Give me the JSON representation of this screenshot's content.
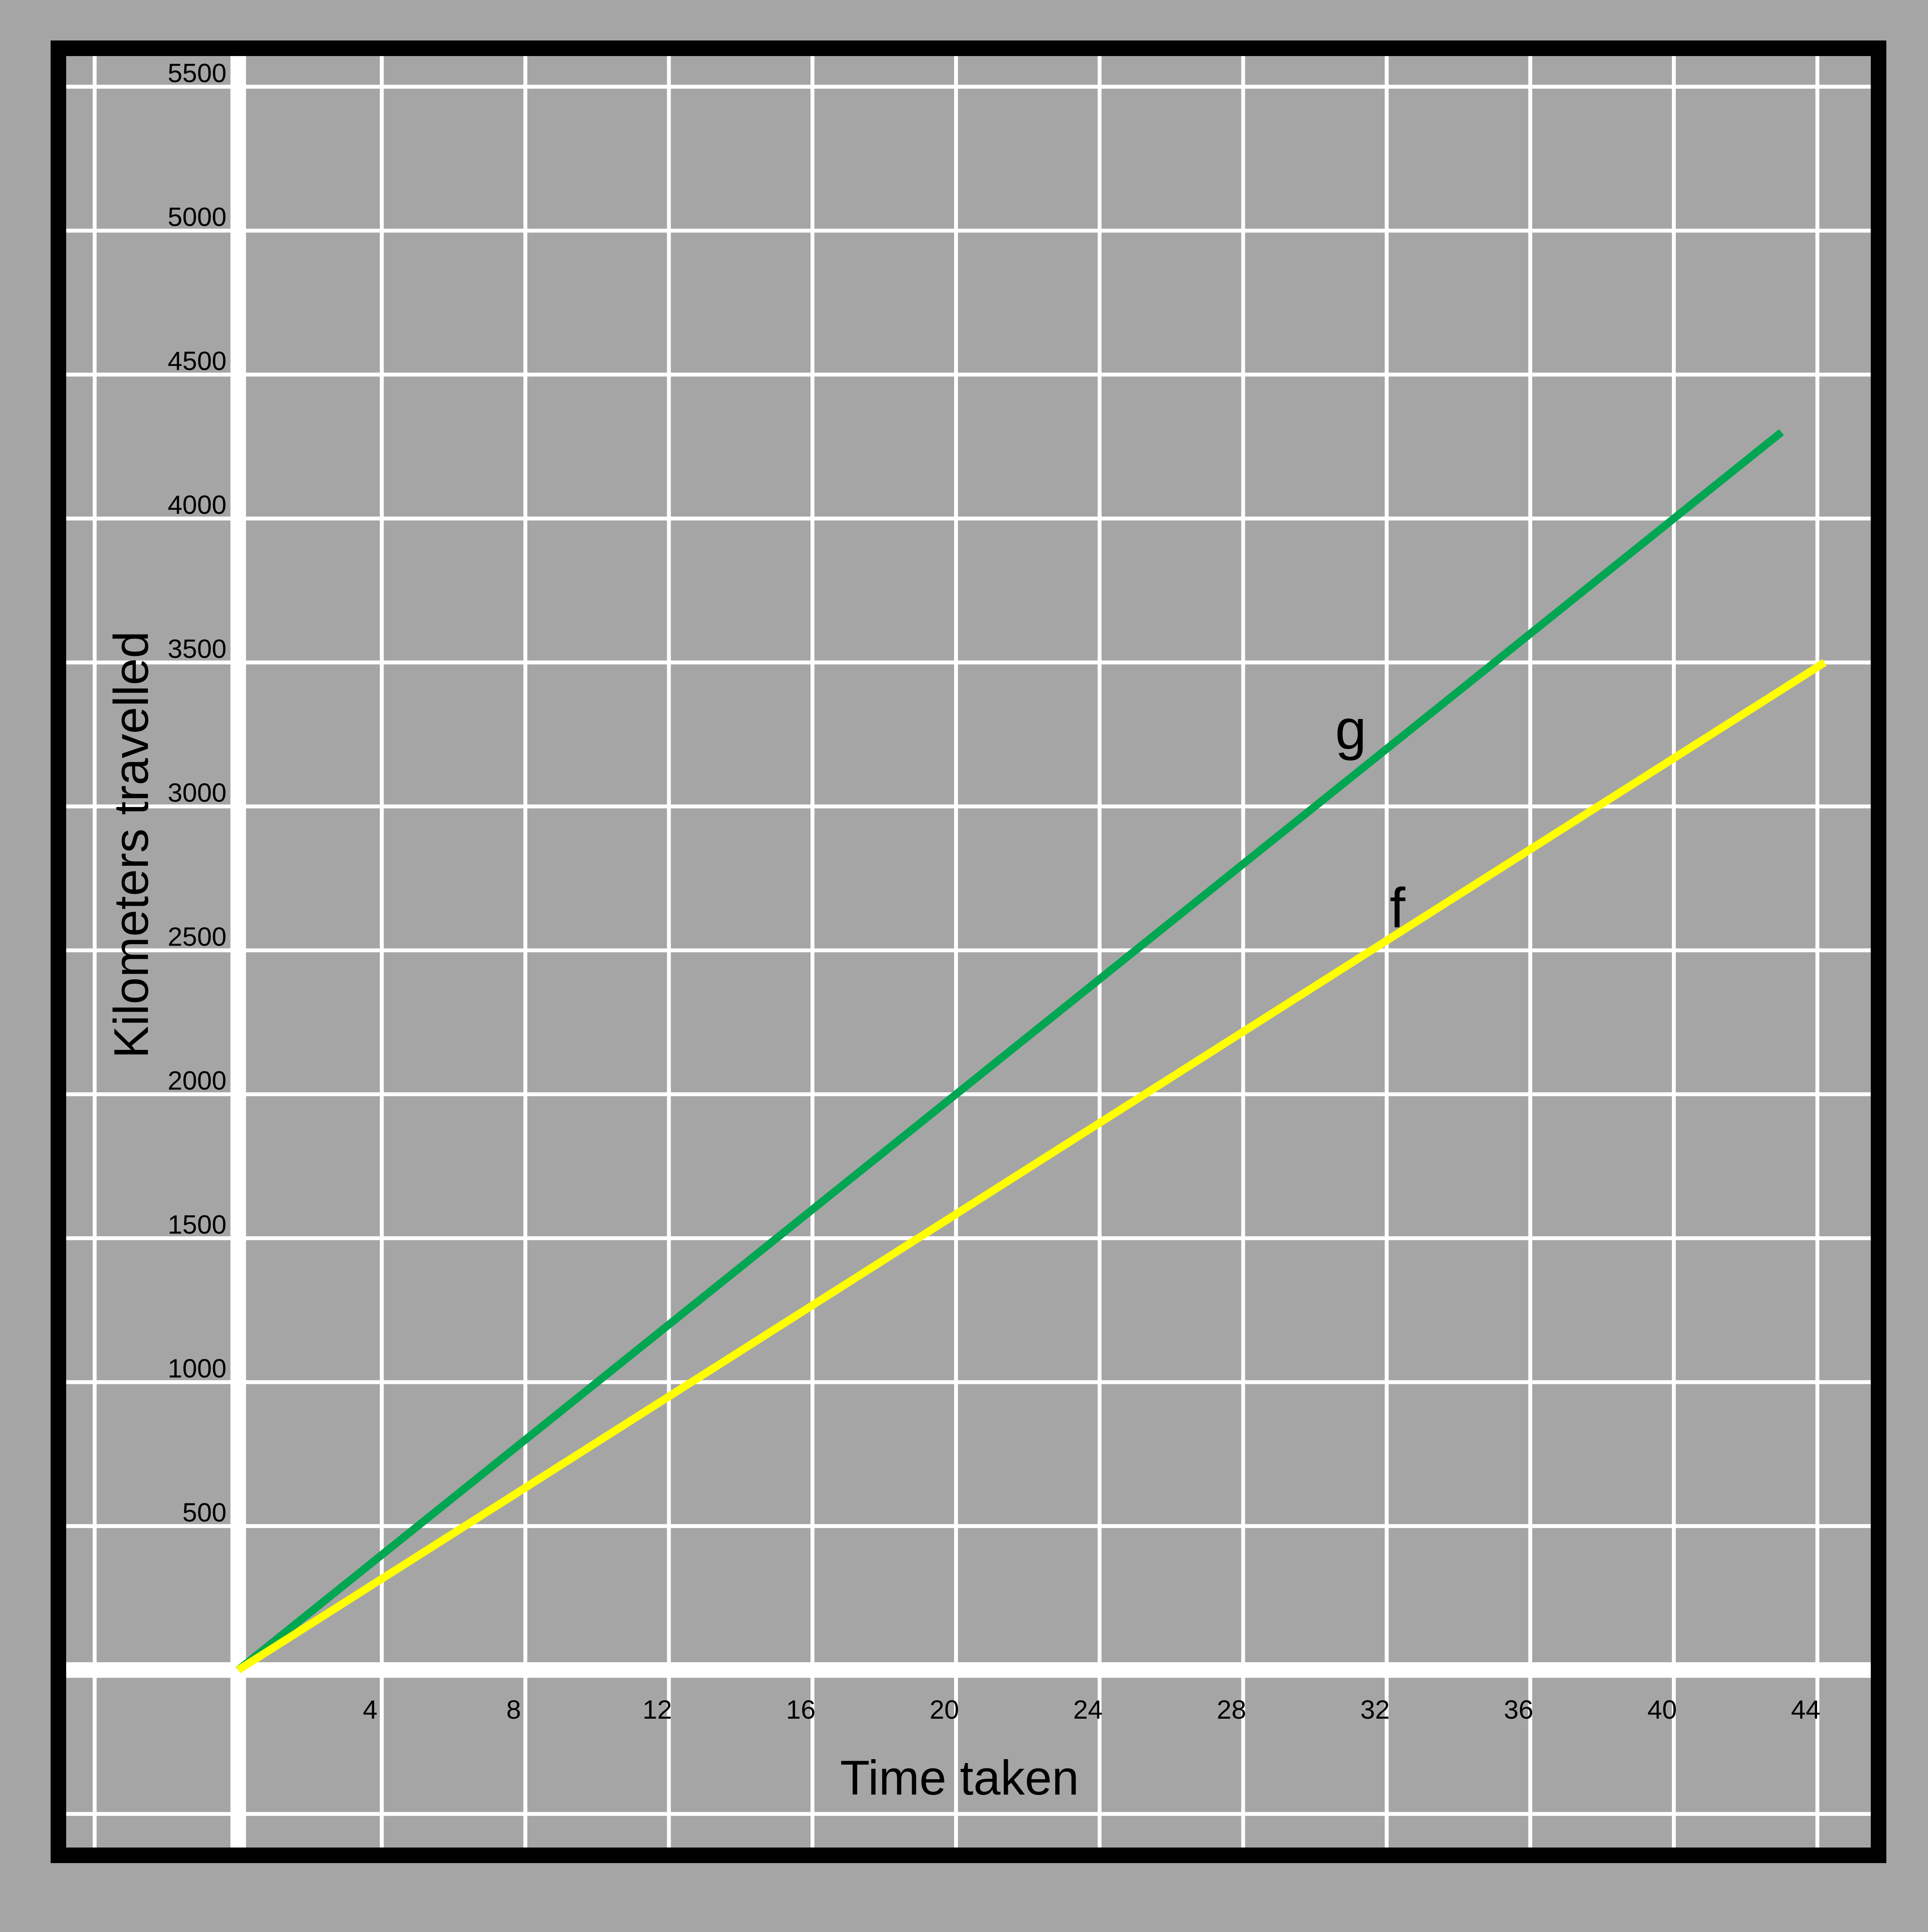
{
  "chart_data": {
    "type": "line",
    "title": "",
    "xlabel": "Time taken",
    "ylabel": "Kilometers travelled",
    "xlim": [
      -4,
      45
    ],
    "ylim": [
      -500,
      5600
    ],
    "x_ticks": [
      4,
      8,
      12,
      16,
      20,
      24,
      28,
      32,
      36,
      40,
      44
    ],
    "y_ticks": [
      500,
      1000,
      1500,
      2000,
      2500,
      3000,
      3500,
      4000,
      4500,
      5000,
      5500
    ],
    "grid": true,
    "series": [
      {
        "name": "g",
        "color": "#00a651",
        "points": [
          [
            0,
            0
          ],
          [
            43,
            4300
          ]
        ],
        "label_at": [
          31,
          3200
        ]
      },
      {
        "name": "f",
        "color": "#ffff00",
        "points": [
          [
            0,
            0
          ],
          [
            44.2,
            3500
          ]
        ],
        "label_at": [
          32.3,
          2580
        ]
      }
    ]
  },
  "colors": {
    "background": "#a5a5a5",
    "frame": "#000000",
    "grid": "#ffffff",
    "axes": "#ffffff"
  }
}
